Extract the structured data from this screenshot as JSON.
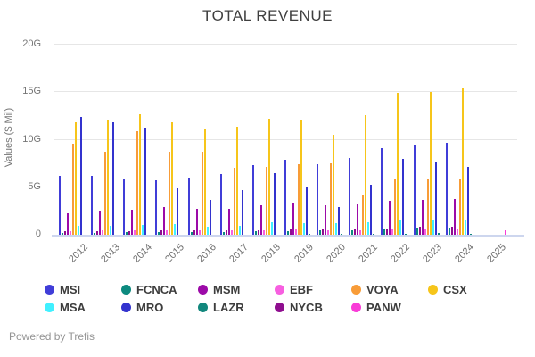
{
  "page": {
    "title": "TOTAL REVENUE",
    "footer": "Powered by Trefis"
  },
  "chart_data": {
    "type": "bar",
    "title": "TOTAL REVENUE",
    "xlabel": "",
    "ylabel": "Values ($ Mil)",
    "ylim": [
      0,
      20
    ],
    "yticks": [
      {
        "value": 0,
        "label": "0"
      },
      {
        "value": 5,
        "label": "5G"
      },
      {
        "value": 10,
        "label": "10G"
      },
      {
        "value": 15,
        "label": "15G"
      },
      {
        "value": 20,
        "label": "20G"
      }
    ],
    "grid": true,
    "legend_position": "bottom",
    "categories": [
      "2012",
      "2013",
      "2014",
      "2015",
      "2016",
      "2017",
      "2018",
      "2019",
      "2020",
      "2021",
      "2022",
      "2023",
      "2024",
      "2025"
    ],
    "series": [
      {
        "name": "MSI",
        "color": "#403DD8",
        "values": [
          6.2,
          6.2,
          5.9,
          5.7,
          6.0,
          6.4,
          7.3,
          7.9,
          7.4,
          8.1,
          9.1,
          9.4,
          9.7,
          0
        ]
      },
      {
        "name": "FCNCA",
        "color": "#0D8A7F",
        "values": [
          0.2,
          0.2,
          0.25,
          0.25,
          0.3,
          0.3,
          0.35,
          0.4,
          0.45,
          0.5,
          0.55,
          0.65,
          0.7,
          0
        ]
      },
      {
        "name": "NYCB",
        "color": "#8F0E8F",
        "values": [
          0.4,
          0.4,
          0.4,
          0.45,
          0.45,
          0.5,
          0.5,
          0.55,
          0.55,
          0.55,
          0.6,
          0.8,
          0.85,
          0
        ]
      },
      {
        "name": "MSM",
        "color": "#9C0AA8",
        "values": [
          2.3,
          2.5,
          2.6,
          2.9,
          2.7,
          2.7,
          3.1,
          3.3,
          3.1,
          3.2,
          3.6,
          3.7,
          3.8,
          0
        ]
      },
      {
        "name": "EBF",
        "color": "#F75FE0",
        "values": [
          0.4,
          0.45,
          0.45,
          0.5,
          0.45,
          0.45,
          0.5,
          0.55,
          0.5,
          0.5,
          0.55,
          0.6,
          0.6,
          0
        ]
      },
      {
        "name": "VOYA",
        "color": "#F89C38",
        "values": [
          9.6,
          8.7,
          10.9,
          8.7,
          8.7,
          7.0,
          7.1,
          7.4,
          7.5,
          4.2,
          5.8,
          5.8,
          5.8,
          0
        ]
      },
      {
        "name": "CSX",
        "color": "#F6C51A",
        "values": [
          11.8,
          12.0,
          12.7,
          11.8,
          11.1,
          11.4,
          12.25,
          12.0,
          10.55,
          12.6,
          14.9,
          15.0,
          15.4,
          0
        ]
      },
      {
        "name": "MSA",
        "color": "#40F0FF",
        "values": [
          0.9,
          0.9,
          1.0,
          1.1,
          0.85,
          0.9,
          1.3,
          1.2,
          1.2,
          1.3,
          1.5,
          1.6,
          1.6,
          0
        ]
      },
      {
        "name": "MRO",
        "color": "#3333CE",
        "values": [
          12.4,
          11.8,
          11.3,
          4.9,
          3.7,
          4.7,
          6.5,
          5.1,
          2.9,
          5.3,
          8.0,
          7.6,
          7.1,
          0
        ]
      },
      {
        "name": "LAZR",
        "color": "#12877D",
        "values": [
          0,
          0,
          0,
          0,
          0,
          0,
          0,
          0.05,
          0.1,
          0.1,
          0.1,
          0.15,
          0.1,
          0
        ]
      },
      {
        "name": "PANW",
        "color": "#F93BD7",
        "values": [
          0,
          0,
          0,
          0,
          0,
          0,
          0,
          0,
          0,
          0,
          0,
          0,
          0,
          0.5
        ]
      }
    ],
    "legend_rows": [
      [
        "MSI",
        "FCNCA",
        "MSM",
        "EBF",
        "VOYA",
        "CSX"
      ],
      [
        "MSA",
        "MRO",
        "LAZR",
        "NYCB",
        "PANW"
      ]
    ]
  }
}
